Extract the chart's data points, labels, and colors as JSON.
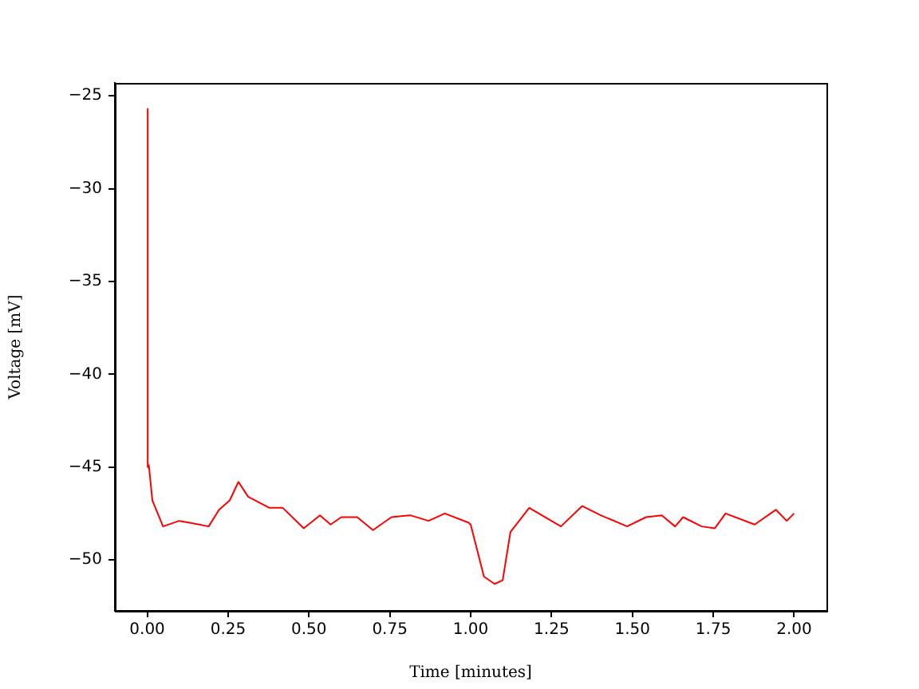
{
  "chart_data": {
    "type": "line",
    "xlabel": "Time [minutes]",
    "ylabel": "Voltage [mV]",
    "xlim": [
      -0.1,
      2.1
    ],
    "ylim": [
      -52.75,
      -24.3
    ],
    "xticks": [
      {
        "value": 0,
        "label": "0.00"
      },
      {
        "value": 0.25,
        "label": "0.25"
      },
      {
        "value": 0.5,
        "label": "0.50"
      },
      {
        "value": 0.75,
        "label": "0.75"
      },
      {
        "value": 1,
        "label": "1.00"
      },
      {
        "value": 1.25,
        "label": "1.25"
      },
      {
        "value": 1.5,
        "label": "1.50"
      },
      {
        "value": 1.75,
        "label": "1.75"
      },
      {
        "value": 2,
        "label": "2.00"
      }
    ],
    "yticks": [
      {
        "value": -50,
        "label": "−50"
      },
      {
        "value": -45,
        "label": "−45"
      },
      {
        "value": -40,
        "label": "−40"
      },
      {
        "value": -35,
        "label": "−35"
      },
      {
        "value": -30,
        "label": "−30"
      },
      {
        "value": -25,
        "label": "−25"
      }
    ],
    "grid": false,
    "legend": false,
    "marker": "none",
    "line_style": "solid",
    "series": [
      {
        "color": "#ff0000",
        "x": [
          0,
          0.001,
          0.002,
          0.005,
          0.016,
          0.049,
          0.099,
          0.131,
          0.19,
          0.222,
          0.255,
          0.282,
          0.312,
          0.378,
          0.419,
          0.484,
          0.534,
          0.567,
          0.6,
          0.649,
          0.698,
          0.755,
          0.813,
          0.87,
          0.92,
          0.994,
          1.0,
          1.041,
          1.074,
          1.099,
          1.123,
          1.181,
          1.279,
          1.345,
          1.402,
          1.484,
          1.542,
          1.591,
          1.632,
          1.657,
          1.714,
          1.755,
          1.788,
          1.878,
          1.944,
          1.977,
          2.0
        ],
        "values": [
          -45.0,
          -25.7,
          -45.0,
          -44.9,
          -46.8,
          -48.2,
          -47.9,
          -48.0,
          -48.2,
          -47.3,
          -46.8,
          -45.8,
          -46.6,
          -47.2,
          -47.2,
          -48.3,
          -47.6,
          -48.1,
          -47.7,
          -47.7,
          -48.4,
          -47.7,
          -47.6,
          -47.9,
          -47.5,
          -48.0,
          -48.1,
          -50.9,
          -51.3,
          -51.1,
          -48.5,
          -47.2,
          -48.2,
          -47.1,
          -47.6,
          -48.2,
          -47.7,
          -47.6,
          -48.2,
          -47.7,
          -48.2,
          -48.3,
          -47.5,
          -48.1,
          -47.3,
          -47.9,
          -47.5
        ]
      }
    ]
  }
}
